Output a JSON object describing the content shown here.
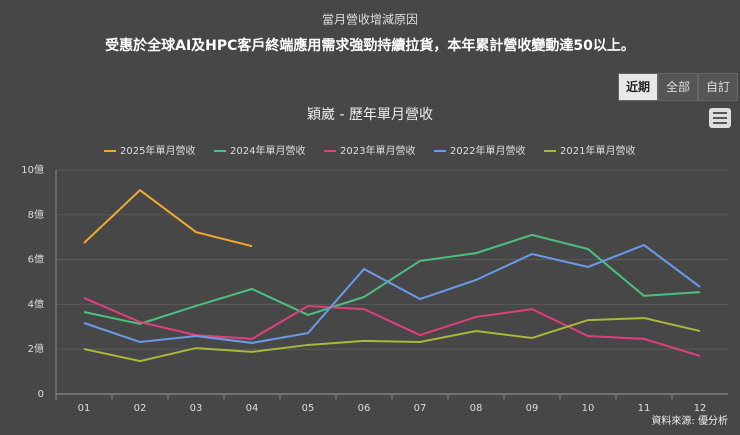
{
  "header": {
    "subtitle": "當月營收增減原因",
    "headline": "受惠於全球AI及HPC客戶終端應用需求強勁持續拉貨，本年累計營收變動達50以上。"
  },
  "buttons": [
    "近期",
    "全部",
    "自訂"
  ],
  "chart_data": {
    "type": "line",
    "title": "穎崴 - 歷年單月營收",
    "categories": [
      "01",
      "02",
      "03",
      "04",
      "05",
      "06",
      "07",
      "08",
      "09",
      "10",
      "11",
      "12"
    ],
    "series": [
      {
        "name": "2025年單月營收",
        "color": "#f0a830",
        "values": [
          6.74,
          9.1,
          7.23,
          6.6,
          null,
          null,
          null,
          null,
          null,
          null,
          null,
          null
        ]
      },
      {
        "name": "2024年單月營收",
        "color": "#4cc080",
        "values": [
          3.66,
          3.13,
          3.93,
          4.69,
          3.53,
          4.33,
          5.94,
          6.29,
          7.1,
          6.47,
          4.38,
          4.55
        ]
      },
      {
        "name": "2023年單月營收",
        "color": "#e0407a",
        "values": [
          4.29,
          3.21,
          2.63,
          2.46,
          3.93,
          3.79,
          2.63,
          3.44,
          3.79,
          2.59,
          2.46,
          1.7
        ]
      },
      {
        "name": "2022年單月營收",
        "color": "#6a9be8",
        "values": [
          3.17,
          2.32,
          2.59,
          2.28,
          2.72,
          5.58,
          4.24,
          5.09,
          6.25,
          5.67,
          6.65,
          4.78
        ]
      },
      {
        "name": "2021年單月營收",
        "color": "#a8b83a",
        "values": [
          2.01,
          1.47,
          2.05,
          1.88,
          2.19,
          2.37,
          2.32,
          2.81,
          2.5,
          3.3,
          3.39,
          2.81
        ]
      }
    ],
    "ylim": [
      0,
      10
    ],
    "yticks": [
      0,
      {
        "value": 2,
        "label": "2億"
      },
      {
        "value": 4,
        "label": "4億"
      },
      {
        "value": 6,
        "label": "6億"
      },
      {
        "value": 8,
        "label": "8億"
      },
      {
        "value": 10,
        "label": "10億"
      }
    ],
    "grid": true
  },
  "source": "資料來源: 優分析"
}
